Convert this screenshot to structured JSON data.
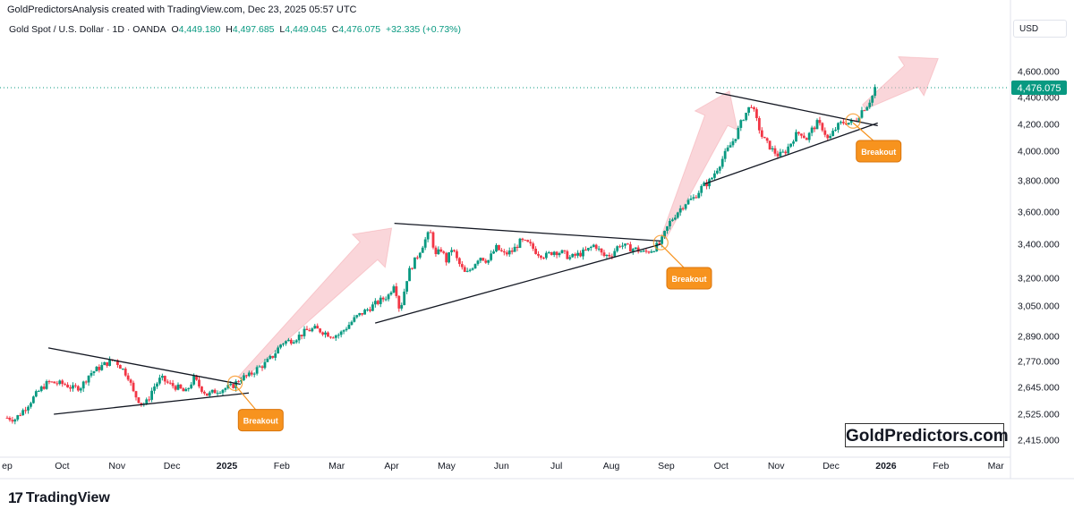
{
  "header": {
    "attribution": "GoldPredictorsAnalysis created with TradingView.com, Dec 23, 2025 05:57 UTC"
  },
  "symbol_line": {
    "name": "Gold Spot / U.S. Dollar · 1D · OANDA",
    "open_label": "O",
    "open": "4,449.180",
    "high_label": "H",
    "high": "4,497.685",
    "low_label": "L",
    "low": "4,449.045",
    "close_label": "C",
    "close": "4,476.075",
    "change": "+32.335 (+0.73%)"
  },
  "currency": "USD",
  "watermark": "GoldPredictors.com",
  "footer_logo": {
    "mark": "17",
    "name": "TradingView"
  },
  "colors": {
    "up": "#089981",
    "down": "#f23645",
    "breakout": "#f7931e",
    "arrow": "#f5b5bb",
    "price_tag": "#089981"
  },
  "chart_data": {
    "type": "candlestick",
    "title": "",
    "current_price": 4476.075,
    "current_price_label": "4,476.075",
    "y_ticks": [
      {
        "value": 4600,
        "label": "4,600.000"
      },
      {
        "value": 4400,
        "label": "4,400.000"
      },
      {
        "value": 4200,
        "label": "4,200.000"
      },
      {
        "value": 4000,
        "label": "4,000.000"
      },
      {
        "value": 3800,
        "label": "3,800.000"
      },
      {
        "value": 3600,
        "label": "3,600.000"
      },
      {
        "value": 3400,
        "label": "3,400.000"
      },
      {
        "value": 3200,
        "label": "3,200.000"
      },
      {
        "value": 3050,
        "label": "3,050.000"
      },
      {
        "value": 2890,
        "label": "2,890.000"
      },
      {
        "value": 2770,
        "label": "2,770.000"
      },
      {
        "value": 2645,
        "label": "2,645.000"
      },
      {
        "value": 2525,
        "label": "2,525.000"
      },
      {
        "value": 2415,
        "label": "2,415.000"
      }
    ],
    "x_ticks": [
      {
        "t": 0,
        "label": "ep"
      },
      {
        "t": 2,
        "label": "Oct"
      },
      {
        "t": 4,
        "label": "Nov"
      },
      {
        "t": 6,
        "label": "Dec"
      },
      {
        "t": 8,
        "label": "2025"
      },
      {
        "t": 10,
        "label": "Feb"
      },
      {
        "t": 12,
        "label": "Mar"
      },
      {
        "t": 14,
        "label": "Apr"
      },
      {
        "t": 16,
        "label": "May"
      },
      {
        "t": 18,
        "label": "Jun"
      },
      {
        "t": 20,
        "label": "Jul"
      },
      {
        "t": 22,
        "label": "Aug"
      },
      {
        "t": 24,
        "label": "Sep"
      },
      {
        "t": 26,
        "label": "Oct"
      },
      {
        "t": 28,
        "label": "Nov"
      },
      {
        "t": 30,
        "label": "Dec"
      },
      {
        "t": 32,
        "label": "2026"
      },
      {
        "t": 34,
        "label": "Feb"
      },
      {
        "t": 36,
        "label": "Mar"
      }
    ],
    "price_path": [
      [
        0.0,
        2510
      ],
      [
        0.3,
        2505
      ],
      [
        0.6,
        2545
      ],
      [
        0.9,
        2590
      ],
      [
        1.2,
        2635
      ],
      [
        1.5,
        2670
      ],
      [
        1.8,
        2665
      ],
      [
        2.1,
        2660
      ],
      [
        2.4,
        2640
      ],
      [
        2.7,
        2650
      ],
      [
        3.0,
        2710
      ],
      [
        3.3,
        2735
      ],
      [
        3.6,
        2760
      ],
      [
        3.9,
        2780
      ],
      [
        4.1,
        2750
      ],
      [
        4.4,
        2700
      ],
      [
        4.6,
        2620
      ],
      [
        4.9,
        2570
      ],
      [
        5.1,
        2580
      ],
      [
        5.3,
        2640
      ],
      [
        5.6,
        2690
      ],
      [
        5.9,
        2660
      ],
      [
        6.2,
        2645
      ],
      [
        6.5,
        2620
      ],
      [
        6.8,
        2690
      ],
      [
        7.0,
        2650
      ],
      [
        7.3,
        2610
      ],
      [
        7.6,
        2630
      ],
      [
        7.9,
        2640
      ],
      [
        8.2,
        2650
      ],
      [
        8.5,
        2690
      ],
      [
        8.8,
        2700
      ],
      [
        9.1,
        2735
      ],
      [
        9.4,
        2760
      ],
      [
        9.7,
        2800
      ],
      [
        10.0,
        2860
      ],
      [
        10.3,
        2870
      ],
      [
        10.6,
        2890
      ],
      [
        10.9,
        2920
      ],
      [
        11.2,
        2930
      ],
      [
        11.5,
        2915
      ],
      [
        11.8,
        2895
      ],
      [
        12.1,
        2900
      ],
      [
        12.4,
        2945
      ],
      [
        12.7,
        2990
      ],
      [
        13.0,
        3020
      ],
      [
        13.3,
        3050
      ],
      [
        13.6,
        3080
      ],
      [
        13.9,
        3110
      ],
      [
        14.1,
        3180
      ],
      [
        14.3,
        3020
      ],
      [
        14.6,
        3230
      ],
      [
        14.9,
        3320
      ],
      [
        15.2,
        3420
      ],
      [
        15.4,
        3480
      ],
      [
        15.6,
        3330
      ],
      [
        15.8,
        3370
      ],
      [
        16.0,
        3300
      ],
      [
        16.2,
        3380
      ],
      [
        16.4,
        3300
      ],
      [
        16.7,
        3220
      ],
      [
        16.9,
        3260
      ],
      [
        17.2,
        3330
      ],
      [
        17.5,
        3300
      ],
      [
        17.8,
        3380
      ],
      [
        18.1,
        3340
      ],
      [
        18.4,
        3360
      ],
      [
        18.7,
        3420
      ],
      [
        19.0,
        3400
      ],
      [
        19.3,
        3350
      ],
      [
        19.6,
        3330
      ],
      [
        19.9,
        3360
      ],
      [
        20.2,
        3350
      ],
      [
        20.5,
        3320
      ],
      [
        20.8,
        3340
      ],
      [
        21.1,
        3360
      ],
      [
        21.4,
        3400
      ],
      [
        21.7,
        3330
      ],
      [
        22.0,
        3340
      ],
      [
        22.3,
        3400
      ],
      [
        22.6,
        3380
      ],
      [
        22.9,
        3370
      ],
      [
        23.2,
        3350
      ],
      [
        23.5,
        3370
      ],
      [
        23.8,
        3410
      ],
      [
        24.1,
        3530
      ],
      [
        24.4,
        3600
      ],
      [
        24.7,
        3660
      ],
      [
        25.0,
        3690
      ],
      [
        25.3,
        3760
      ],
      [
        25.6,
        3800
      ],
      [
        25.9,
        3900
      ],
      [
        26.2,
        4000
      ],
      [
        26.5,
        4100
      ],
      [
        26.8,
        4250
      ],
      [
        27.1,
        4350
      ],
      [
        27.3,
        4220
      ],
      [
        27.5,
        4100
      ],
      [
        27.7,
        4050
      ],
      [
        27.9,
        4000
      ],
      [
        28.1,
        3970
      ],
      [
        28.3,
        3990
      ],
      [
        28.5,
        4050
      ],
      [
        28.7,
        4120
      ],
      [
        28.9,
        4140
      ],
      [
        29.1,
        4090
      ],
      [
        29.3,
        4160
      ],
      [
        29.5,
        4210
      ],
      [
        29.7,
        4170
      ],
      [
        29.9,
        4080
      ],
      [
        30.1,
        4150
      ],
      [
        30.3,
        4200
      ],
      [
        30.5,
        4220
      ],
      [
        30.7,
        4210
      ],
      [
        30.9,
        4230
      ],
      [
        31.1,
        4300
      ],
      [
        31.3,
        4340
      ],
      [
        31.5,
        4410
      ],
      [
        31.6,
        4476
      ]
    ],
    "triangles": [
      {
        "upper": [
          [
            1.5,
            2835
          ],
          [
            8.5,
            2660
          ]
        ],
        "lower": [
          [
            1.7,
            2525
          ],
          [
            8.8,
            2620
          ]
        ]
      },
      {
        "upper": [
          [
            14.1,
            3530
          ],
          [
            23.8,
            3420
          ]
        ],
        "lower": [
          [
            13.4,
            2960
          ],
          [
            23.8,
            3400
          ]
        ]
      },
      {
        "upper": [
          [
            25.8,
            4440
          ],
          [
            31.7,
            4190
          ]
        ],
        "lower": [
          [
            25.4,
            3780
          ],
          [
            31.7,
            4210
          ]
        ]
      }
    ],
    "breakouts": [
      {
        "label": "Breakout",
        "circle_at": [
          8.3,
          2665
        ],
        "box_at": [
          9.2,
          2500
        ]
      },
      {
        "label": "Breakout",
        "circle_at": [
          23.8,
          3410
        ],
        "box_at": [
          24.8,
          3200
        ]
      },
      {
        "label": "Breakout",
        "circle_at": [
          30.8,
          4225
        ],
        "box_at": [
          31.7,
          4000
        ]
      }
    ],
    "projection_arrows": [
      {
        "from": [
          8.5,
          2690
        ],
        "to": [
          14.0,
          3500
        ]
      },
      {
        "from": [
          23.9,
          3440
        ],
        "to": [
          26.3,
          4450
        ]
      },
      {
        "from": [
          31.2,
          4330
        ],
        "to": [
          33.9,
          4700
        ]
      }
    ]
  }
}
